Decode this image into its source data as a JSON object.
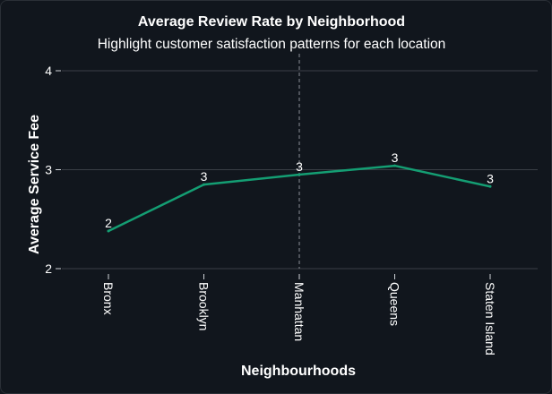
{
  "chart_data": {
    "type": "line",
    "title": "Average Review Rate by Neighborhood",
    "subtitle": "Highlight customer satisfaction patterns for each location",
    "xlabel": "Neighbourhoods",
    "ylabel": "Average Service Fee",
    "categories": [
      "Bronx",
      "Brooklyn",
      "Manhattan",
      "Queens",
      "Staten Island"
    ],
    "values": [
      2.38,
      2.85,
      2.95,
      3.04,
      2.83
    ],
    "data_labels": [
      "2",
      "3",
      "3",
      "3",
      "3"
    ],
    "y_ticks": [
      2,
      3,
      4
    ],
    "ylim": [
      2,
      4
    ],
    "grid": "horizontal",
    "highlight_category": "Manhattan",
    "colors": {
      "background": "#11161d",
      "line": "#149e73",
      "grid": "#3a3f46",
      "highlight_line": "#8a8f96",
      "text": "#ffffff"
    }
  }
}
